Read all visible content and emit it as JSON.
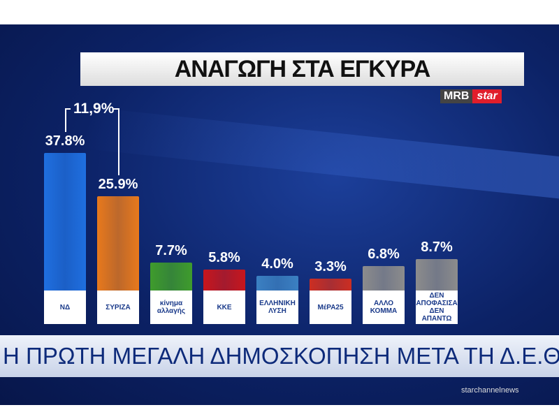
{
  "chart_data": {
    "type": "bar",
    "title": "ΑΝΑΓΩΓΗ ΣΤΑ ΕΓΚΥΡΑ",
    "categories": [
      "ΝΔ",
      "ΣΥΡΙΖΑ",
      "κίνημα αλλαγής",
      "ΚΚΕ",
      "ΕΛΛΗΝΙΚΗ ΛΥΣΗ",
      "ΜέΡΑ25",
      "ΑΛΛΟ ΚΟΜΜΑ",
      "ΔΕΝ ΑΠΟΦΑΣΙΣΑ ΔΕΝ ΑΠΑΝΤΩ"
    ],
    "values": [
      37.8,
      25.9,
      7.7,
      5.8,
      4.0,
      3.3,
      6.8,
      8.7
    ],
    "value_labels": [
      "37.8%",
      "25.9%",
      "7.7%",
      "5.8%",
      "4.0%",
      "3.3%",
      "6.8%",
      "8.7%"
    ],
    "colors": [
      "#1f6fe0",
      "#e8791c",
      "#3f9c2c",
      "#c8161d",
      "#3b80c2",
      "#cc2e22",
      "#8c8c8c",
      "#8c8c8c"
    ],
    "annotation": "11,9%"
  },
  "branding": {
    "mrb": "MRB",
    "channel": "star",
    "ticker": "Η ΠΡΩΤΗ ΜΕΓΑΛΗ ΔΗΜΟΣΚΟΠΗΣΗ ΜΕΤΑ ΤΗ Δ.Ε.Θ.",
    "social": "starchannelnews"
  }
}
